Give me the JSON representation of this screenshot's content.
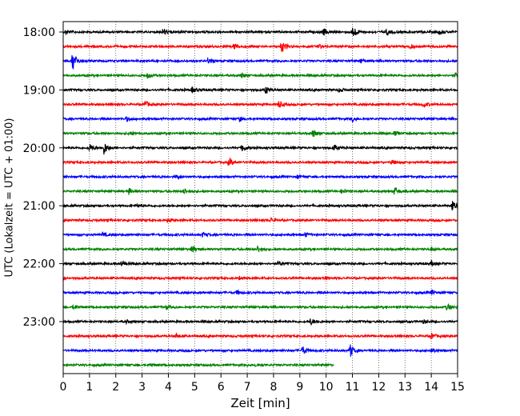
{
  "chart_data": {
    "type": "line",
    "title": "",
    "xlabel": "Zeit  [min]",
    "ylabel": "UTC (Lokalzeit = UTC + 01:00)",
    "xlim": [
      0,
      15
    ],
    "x_ticks": [
      0,
      1,
      2,
      3,
      4,
      5,
      6,
      7,
      8,
      9,
      10,
      11,
      12,
      13,
      14,
      15
    ],
    "x_tick_labels": [
      "0",
      "1",
      "2",
      "3",
      "4",
      "5",
      "6",
      "7",
      "8",
      "9",
      "10",
      "11",
      "12",
      "13",
      "14",
      "15"
    ],
    "y_tick_labels": [
      "18:00",
      "19:00",
      "20:00",
      "21:00",
      "22:00",
      "23:00"
    ],
    "y_ticks_trace_index": [
      0,
      4,
      8,
      12,
      16,
      20
    ],
    "grid": "vertical-dotted",
    "trace_interval_min": 15,
    "trace_colors_cycle": [
      "#000000",
      "#ff0000",
      "#0000ff",
      "#008000"
    ],
    "series": [
      {
        "start": "18:00",
        "color": "#000000",
        "end_min": 15,
        "events": [
          [
            0.1,
            0.3
          ],
          [
            3.8,
            0.5
          ],
          [
            9.9,
            0.5
          ],
          [
            11.0,
            1.0
          ],
          [
            12.3,
            0.4
          ],
          [
            14.3,
            0.3
          ]
        ]
      },
      {
        "start": "18:15",
        "color": "#ff0000",
        "end_min": 15,
        "events": [
          [
            6.5,
            0.5
          ],
          [
            8.3,
            0.9
          ],
          [
            9.7,
            0.3
          ],
          [
            13.2,
            0.3
          ]
        ]
      },
      {
        "start": "18:30",
        "color": "#0000ff",
        "end_min": 15,
        "events": [
          [
            0.35,
            1.6
          ],
          [
            5.5,
            0.4
          ],
          [
            11.3,
            0.3
          ]
        ]
      },
      {
        "start": "18:45",
        "color": "#008000",
        "end_min": 15,
        "events": [
          [
            3.2,
            0.4
          ],
          [
            6.8,
            0.3
          ],
          [
            14.9,
            0.3
          ]
        ]
      },
      {
        "start": "19:00",
        "color": "#000000",
        "end_min": 15,
        "events": [
          [
            4.9,
            0.4
          ],
          [
            7.7,
            0.5
          ],
          [
            10.5,
            0.3
          ]
        ]
      },
      {
        "start": "19:15",
        "color": "#ff0000",
        "end_min": 15,
        "events": [
          [
            3.1,
            0.5
          ],
          [
            8.2,
            0.5
          ],
          [
            13.7,
            0.4
          ]
        ]
      },
      {
        "start": "19:30",
        "color": "#0000ff",
        "end_min": 15,
        "events": [
          [
            2.4,
            0.3
          ],
          [
            6.7,
            0.3
          ],
          [
            11.0,
            0.3
          ]
        ]
      },
      {
        "start": "19:45",
        "color": "#008000",
        "end_min": 15,
        "events": [
          [
            2.5,
            0.3
          ],
          [
            9.5,
            0.5
          ],
          [
            12.6,
            0.3
          ]
        ]
      },
      {
        "start": "20:00",
        "color": "#000000",
        "end_min": 15,
        "events": [
          [
            1.0,
            0.5
          ],
          [
            1.55,
            0.9
          ],
          [
            6.8,
            0.5
          ],
          [
            10.3,
            0.4
          ]
        ]
      },
      {
        "start": "20:15",
        "color": "#ff0000",
        "end_min": 15,
        "events": [
          [
            6.3,
            0.6
          ],
          [
            12.5,
            0.3
          ]
        ]
      },
      {
        "start": "20:30",
        "color": "#0000ff",
        "end_min": 15,
        "events": [
          [
            4.3,
            0.3
          ],
          [
            8.9,
            0.3
          ]
        ]
      },
      {
        "start": "20:45",
        "color": "#008000",
        "end_min": 15,
        "events": [
          [
            2.5,
            0.4
          ],
          [
            4.6,
            0.4
          ],
          [
            10.6,
            0.3
          ],
          [
            12.6,
            0.6
          ]
        ]
      },
      {
        "start": "21:00",
        "color": "#000000",
        "end_min": 15,
        "events": [
          [
            2.8,
            0.2
          ],
          [
            14.8,
            0.6
          ]
        ]
      },
      {
        "start": "21:15",
        "color": "#ff0000",
        "end_min": 15,
        "events": [
          [
            4.0,
            0.3
          ],
          [
            7.9,
            0.3
          ]
        ]
      },
      {
        "start": "21:30",
        "color": "#0000ff",
        "end_min": 15,
        "events": [
          [
            1.5,
            0.3
          ],
          [
            5.3,
            0.3
          ],
          [
            9.2,
            0.3
          ]
        ]
      },
      {
        "start": "21:45",
        "color": "#008000",
        "end_min": 15,
        "events": [
          [
            4.9,
            0.5
          ],
          [
            7.4,
            0.5
          ],
          [
            14.0,
            0.3
          ]
        ]
      },
      {
        "start": "22:00",
        "color": "#000000",
        "end_min": 15,
        "events": [
          [
            2.2,
            0.4
          ],
          [
            8.2,
            0.3
          ],
          [
            14.0,
            0.3
          ]
        ]
      },
      {
        "start": "22:15",
        "color": "#ff0000",
        "end_min": 15,
        "events": [
          [
            6.7,
            0.2
          ],
          [
            10.0,
            0.2
          ]
        ]
      },
      {
        "start": "22:30",
        "color": "#0000ff",
        "end_min": 15,
        "events": [
          [
            6.6,
            0.3
          ],
          [
            14.0,
            0.3
          ]
        ]
      },
      {
        "start": "22:45",
        "color": "#008000",
        "end_min": 15,
        "events": [
          [
            0.4,
            0.3
          ],
          [
            3.9,
            0.3
          ],
          [
            14.6,
            0.5
          ]
        ]
      },
      {
        "start": "23:00",
        "color": "#000000",
        "end_min": 15,
        "events": [
          [
            9.4,
            0.5
          ],
          [
            2.4,
            0.2
          ],
          [
            13.7,
            0.2
          ]
        ]
      },
      {
        "start": "23:15",
        "color": "#ff0000",
        "end_min": 15,
        "events": [
          [
            4.3,
            0.3
          ],
          [
            14.0,
            0.4
          ]
        ]
      },
      {
        "start": "23:30",
        "color": "#0000ff",
        "end_min": 15,
        "events": [
          [
            9.1,
            0.6
          ],
          [
            10.9,
            1.0
          ],
          [
            14.0,
            0.3
          ]
        ]
      },
      {
        "start": "23:45",
        "color": "#008000",
        "end_min": 10.3,
        "events": [
          [
            3.3,
            0.2
          ],
          [
            7.3,
            0.2
          ]
        ]
      }
    ]
  }
}
